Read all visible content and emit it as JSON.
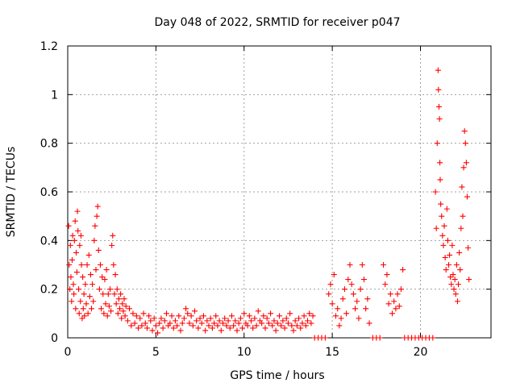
{
  "chart_data": {
    "type": "scatter",
    "title": "Day 048 of 2022, SRMTID for receiver p047",
    "xlabel": "GPS time / hours",
    "ylabel": "SRMTID / TECUs",
    "xlim": [
      0,
      24
    ],
    "ylim": [
      0,
      1.2
    ],
    "xticks": [
      0,
      5,
      10,
      15,
      20
    ],
    "xtick_labels": [
      "0",
      "5",
      "10",
      "15",
      "20"
    ],
    "yticks": [
      0,
      0.2,
      0.4,
      0.6,
      0.8,
      1,
      1.2
    ],
    "ytick_labels": [
      "0",
      "0.2",
      "0.4",
      "0.6",
      "0.8",
      "1",
      "1.2"
    ],
    "grid": true,
    "marker": "+",
    "color": "#ff0000",
    "series": [
      {
        "name": "SRMTID",
        "points": [
          [
            0.05,
            0.46
          ],
          [
            0.08,
            0.3
          ],
          [
            0.12,
            0.2
          ],
          [
            0.15,
            0.38
          ],
          [
            0.18,
            0.25
          ],
          [
            0.22,
            0.15
          ],
          [
            0.25,
            0.32
          ],
          [
            0.28,
            0.42
          ],
          [
            0.32,
            0.22
          ],
          [
            0.35,
            0.18
          ],
          [
            0.38,
            0.4
          ],
          [
            0.42,
            0.48
          ],
          [
            0.45,
            0.12
          ],
          [
            0.48,
            0.35
          ],
          [
            0.52,
            0.27
          ],
          [
            0.55,
            0.52
          ],
          [
            0.58,
            0.44
          ],
          [
            0.62,
            0.2
          ],
          [
            0.65,
            0.1
          ],
          [
            0.68,
            0.38
          ],
          [
            0.72,
            0.15
          ],
          [
            0.75,
            0.42
          ],
          [
            0.78,
            0.3
          ],
          [
            0.82,
            0.08
          ],
          [
            0.85,
            0.25
          ],
          [
            0.88,
            0.12
          ],
          [
            0.92,
            0.18
          ],
          [
            0.95,
            0.09
          ],
          [
            1.0,
            0.22
          ],
          [
            1.05,
            0.14
          ],
          [
            1.1,
            0.3
          ],
          [
            1.15,
            0.1
          ],
          [
            1.2,
            0.34
          ],
          [
            1.25,
            0.17
          ],
          [
            1.3,
            0.26
          ],
          [
            1.35,
            0.12
          ],
          [
            1.4,
            0.22
          ],
          [
            1.45,
            0.15
          ],
          [
            1.5,
            0.4
          ],
          [
            1.55,
            0.46
          ],
          [
            1.6,
            0.28
          ],
          [
            1.65,
            0.5
          ],
          [
            1.7,
            0.54
          ],
          [
            1.75,
            0.36
          ],
          [
            1.8,
            0.2
          ],
          [
            1.85,
            0.3
          ],
          [
            1.9,
            0.12
          ],
          [
            1.95,
            0.25
          ],
          [
            2.0,
            0.18
          ],
          [
            2.05,
            0.1
          ],
          [
            2.1,
            0.24
          ],
          [
            2.15,
            0.14
          ],
          [
            2.2,
            0.28
          ],
          [
            2.25,
            0.09
          ],
          [
            2.3,
            0.18
          ],
          [
            2.35,
            0.13
          ],
          [
            2.4,
            0.2
          ],
          [
            2.45,
            0.11
          ],
          [
            2.5,
            0.38
          ],
          [
            2.55,
            0.42
          ],
          [
            2.6,
            0.3
          ],
          [
            2.65,
            0.18
          ],
          [
            2.7,
            0.26
          ],
          [
            2.75,
            0.14
          ],
          [
            2.8,
            0.2
          ],
          [
            2.85,
            0.1
          ],
          [
            2.9,
            0.16
          ],
          [
            2.95,
            0.12
          ],
          [
            3.0,
            0.18
          ],
          [
            3.05,
            0.08
          ],
          [
            3.1,
            0.14
          ],
          [
            3.15,
            0.11
          ],
          [
            3.2,
            0.16
          ],
          [
            3.25,
            0.09
          ],
          [
            3.3,
            0.13
          ],
          [
            3.4,
            0.07
          ],
          [
            3.5,
            0.12
          ],
          [
            3.6,
            0.05
          ],
          [
            3.7,
            0.1
          ],
          [
            3.8,
            0.06
          ],
          [
            3.9,
            0.09
          ],
          [
            4.0,
            0.04
          ],
          [
            4.1,
            0.08
          ],
          [
            4.2,
            0.05
          ],
          [
            4.3,
            0.1
          ],
          [
            4.4,
            0.06
          ],
          [
            4.5,
            0.04
          ],
          [
            4.6,
            0.09
          ],
          [
            4.7,
            0.07
          ],
          [
            4.8,
            0.03
          ],
          [
            4.9,
            0.08
          ],
          [
            5.0,
            0.05
          ],
          [
            5.1,
            0.02
          ],
          [
            5.2,
            0.06
          ],
          [
            5.3,
            0.08
          ],
          [
            5.4,
            0.04
          ],
          [
            5.5,
            0.07
          ],
          [
            5.6,
            0.1
          ],
          [
            5.7,
            0.05
          ],
          [
            5.8,
            0.06
          ],
          [
            5.9,
            0.09
          ],
          [
            6.0,
            0.04
          ],
          [
            6.1,
            0.07
          ],
          [
            6.2,
            0.05
          ],
          [
            6.3,
            0.09
          ],
          [
            6.4,
            0.03
          ],
          [
            6.5,
            0.06
          ],
          [
            6.6,
            0.08
          ],
          [
            6.7,
            0.12
          ],
          [
            6.8,
            0.1
          ],
          [
            6.9,
            0.06
          ],
          [
            7.0,
            0.09
          ],
          [
            7.1,
            0.05
          ],
          [
            7.2,
            0.11
          ],
          [
            7.3,
            0.07
          ],
          [
            7.4,
            0.04
          ],
          [
            7.5,
            0.08
          ],
          [
            7.6,
            0.06
          ],
          [
            7.7,
            0.09
          ],
          [
            7.8,
            0.03
          ],
          [
            7.9,
            0.07
          ],
          [
            8.0,
            0.05
          ],
          [
            8.1,
            0.08
          ],
          [
            8.2,
            0.04
          ],
          [
            8.3,
            0.06
          ],
          [
            8.4,
            0.09
          ],
          [
            8.5,
            0.05
          ],
          [
            8.6,
            0.07
          ],
          [
            8.7,
            0.03
          ],
          [
            8.8,
            0.06
          ],
          [
            8.9,
            0.08
          ],
          [
            9.0,
            0.05
          ],
          [
            9.1,
            0.07
          ],
          [
            9.2,
            0.04
          ],
          [
            9.3,
            0.09
          ],
          [
            9.4,
            0.05
          ],
          [
            9.5,
            0.07
          ],
          [
            9.6,
            0.03
          ],
          [
            9.7,
            0.06
          ],
          [
            9.8,
            0.08
          ],
          [
            9.9,
            0.04
          ],
          [
            10.0,
            0.1
          ],
          [
            10.1,
            0.06
          ],
          [
            10.2,
            0.05
          ],
          [
            10.3,
            0.09
          ],
          [
            10.4,
            0.07
          ],
          [
            10.5,
            0.04
          ],
          [
            10.6,
            0.08
          ],
          [
            10.7,
            0.05
          ],
          [
            10.8,
            0.11
          ],
          [
            10.9,
            0.07
          ],
          [
            11.0,
            0.06
          ],
          [
            11.1,
            0.09
          ],
          [
            11.2,
            0.04
          ],
          [
            11.3,
            0.08
          ],
          [
            11.4,
            0.06
          ],
          [
            11.5,
            0.1
          ],
          [
            11.6,
            0.05
          ],
          [
            11.7,
            0.07
          ],
          [
            11.8,
            0.03
          ],
          [
            11.9,
            0.06
          ],
          [
            12.0,
            0.09
          ],
          [
            12.1,
            0.05
          ],
          [
            12.2,
            0.07
          ],
          [
            12.3,
            0.04
          ],
          [
            12.4,
            0.08
          ],
          [
            12.5,
            0.06
          ],
          [
            12.6,
            0.1
          ],
          [
            12.7,
            0.05
          ],
          [
            12.8,
            0.03
          ],
          [
            12.9,
            0.07
          ],
          [
            13.0,
            0.05
          ],
          [
            13.1,
            0.08
          ],
          [
            13.2,
            0.04
          ],
          [
            13.3,
            0.06
          ],
          [
            13.4,
            0.09
          ],
          [
            13.5,
            0.05
          ],
          [
            13.6,
            0.07
          ],
          [
            13.7,
            0.1
          ],
          [
            13.8,
            0.06
          ],
          [
            13.9,
            0.09
          ],
          [
            14.0,
            0.0
          ],
          [
            14.2,
            0.0
          ],
          [
            14.4,
            0.0
          ],
          [
            14.6,
            0.0
          ],
          [
            14.8,
            0.18
          ],
          [
            14.9,
            0.22
          ],
          [
            15.0,
            0.14
          ],
          [
            15.1,
            0.26
          ],
          [
            15.2,
            0.09
          ],
          [
            15.3,
            0.12
          ],
          [
            15.4,
            0.05
          ],
          [
            15.5,
            0.08
          ],
          [
            15.6,
            0.16
          ],
          [
            15.7,
            0.2
          ],
          [
            15.8,
            0.1
          ],
          [
            15.9,
            0.24
          ],
          [
            16.0,
            0.3
          ],
          [
            16.1,
            0.22
          ],
          [
            16.2,
            0.18
          ],
          [
            16.3,
            0.12
          ],
          [
            16.4,
            0.15
          ],
          [
            16.5,
            0.08
          ],
          [
            16.6,
            0.2
          ],
          [
            16.7,
            0.3
          ],
          [
            16.8,
            0.24
          ],
          [
            16.9,
            0.12
          ],
          [
            17.0,
            0.16
          ],
          [
            17.1,
            0.06
          ],
          [
            17.3,
            0.0
          ],
          [
            17.5,
            0.0
          ],
          [
            17.7,
            0.0
          ],
          [
            17.9,
            0.3
          ],
          [
            18.0,
            0.22
          ],
          [
            18.1,
            0.26
          ],
          [
            18.2,
            0.14
          ],
          [
            18.3,
            0.18
          ],
          [
            18.4,
            0.1
          ],
          [
            18.5,
            0.15
          ],
          [
            18.6,
            0.12
          ],
          [
            18.7,
            0.18
          ],
          [
            18.8,
            0.13
          ],
          [
            18.9,
            0.2
          ],
          [
            19.0,
            0.28
          ],
          [
            19.1,
            0.0
          ],
          [
            19.3,
            0.0
          ],
          [
            19.5,
            0.0
          ],
          [
            19.7,
            0.0
          ],
          [
            19.9,
            0.0
          ],
          [
            20.1,
            0.0
          ],
          [
            20.3,
            0.0
          ],
          [
            20.5,
            0.0
          ],
          [
            20.7,
            0.0
          ],
          [
            20.85,
            0.6
          ],
          [
            20.9,
            0.45
          ],
          [
            20.95,
            0.8
          ],
          [
            21.0,
            1.1
          ],
          [
            21.02,
            1.02
          ],
          [
            21.05,
            0.95
          ],
          [
            21.08,
            0.9
          ],
          [
            21.1,
            0.72
          ],
          [
            21.12,
            0.65
          ],
          [
            21.15,
            0.55
          ],
          [
            21.2,
            0.5
          ],
          [
            21.25,
            0.42
          ],
          [
            21.3,
            0.38
          ],
          [
            21.35,
            0.46
          ],
          [
            21.4,
            0.33
          ],
          [
            21.45,
            0.28
          ],
          [
            21.5,
            0.53
          ],
          [
            21.55,
            0.4
          ],
          [
            21.6,
            0.3
          ],
          [
            21.65,
            0.34
          ],
          [
            21.7,
            0.25
          ],
          [
            21.75,
            0.22
          ],
          [
            21.8,
            0.38
          ],
          [
            21.85,
            0.26
          ],
          [
            21.9,
            0.2
          ],
          [
            21.95,
            0.24
          ],
          [
            22.0,
            0.18
          ],
          [
            22.05,
            0.3
          ],
          [
            22.1,
            0.15
          ],
          [
            22.15,
            0.22
          ],
          [
            22.2,
            0.35
          ],
          [
            22.25,
            0.28
          ],
          [
            22.3,
            0.45
          ],
          [
            22.35,
            0.62
          ],
          [
            22.4,
            0.5
          ],
          [
            22.45,
            0.7
          ],
          [
            22.5,
            0.85
          ],
          [
            22.55,
            0.8
          ],
          [
            22.6,
            0.72
          ],
          [
            22.65,
            0.58
          ],
          [
            22.7,
            0.37
          ],
          [
            22.75,
            0.24
          ]
        ]
      }
    ]
  }
}
